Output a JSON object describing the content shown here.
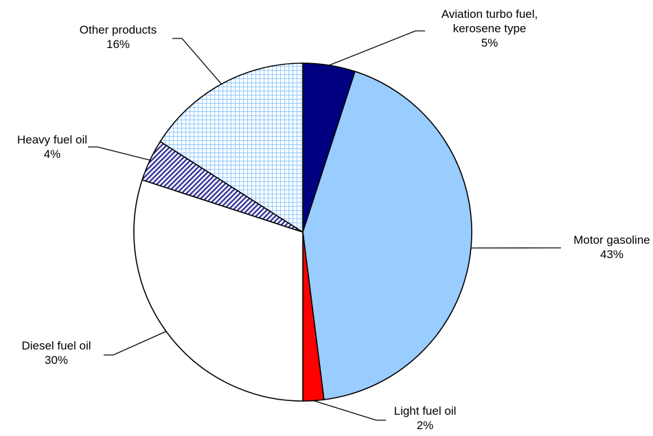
{
  "chart_data": {
    "type": "pie",
    "title": "",
    "slices": [
      {
        "label_lines": [
          "Aviation turbo fuel,",
          "kerosene type"
        ],
        "percent_label": "5%",
        "value": 5,
        "fill": "#000080",
        "pattern": "solid"
      },
      {
        "label_lines": [
          "Motor gasoline"
        ],
        "percent_label": "43%",
        "value": 43,
        "fill": "#99ccff",
        "pattern": "solid"
      },
      {
        "label_lines": [
          "Light fuel oil"
        ],
        "percent_label": "2%",
        "value": 2,
        "fill": "#ff0000",
        "pattern": "solid"
      },
      {
        "label_lines": [
          "Diesel fuel oil"
        ],
        "percent_label": "30%",
        "value": 30,
        "fill": "#ffffff",
        "pattern": "solid"
      },
      {
        "label_lines": [
          "Heavy fuel oil"
        ],
        "percent_label": "4%",
        "value": 4,
        "fill": "#333399",
        "pattern": "diagonal-stripes"
      },
      {
        "label_lines": [
          "Other products"
        ],
        "percent_label": "16%",
        "value": 16,
        "fill": "#99ccff",
        "pattern": "grid"
      }
    ],
    "start_angle": "12 o'clock",
    "direction": "clockwise",
    "legend": "none",
    "labels": "outside with leader lines"
  }
}
